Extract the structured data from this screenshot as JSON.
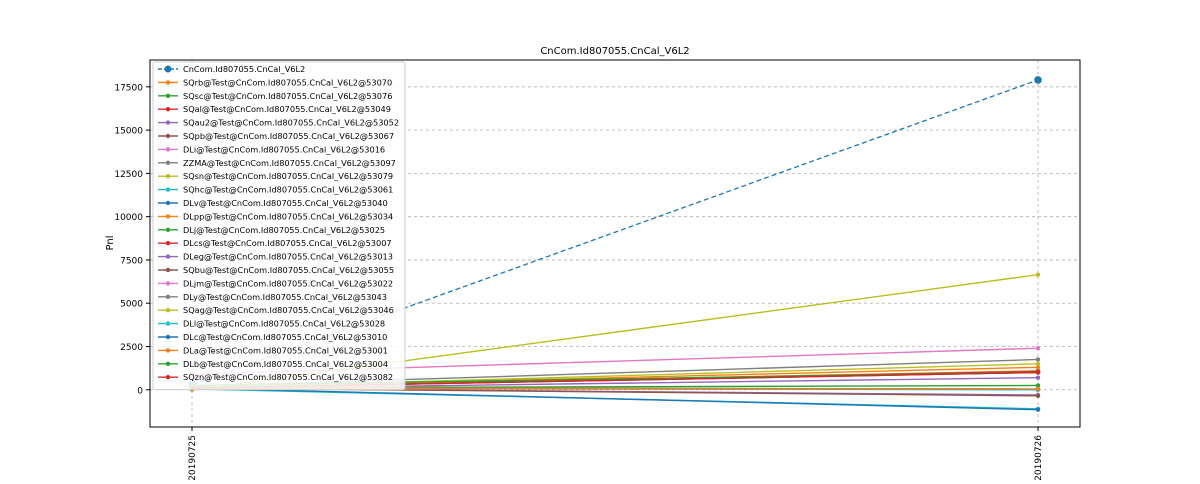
{
  "chart_data": {
    "type": "line",
    "title": "CnCom.Id807055.CnCal_V6L2",
    "xlabel": "",
    "ylabel": "Pnl",
    "categories": [
      "20190725",
      "20190726"
    ],
    "ylim": [
      -2150,
      19050
    ],
    "yticks": [
      0,
      2500,
      5000,
      7500,
      10000,
      12500,
      15000,
      17500
    ],
    "grid": true,
    "legend_position": "upper-left",
    "series": [
      {
        "name": "CnCom.Id807055.CnCal_V6L2",
        "values": [
          300,
          17900
        ],
        "color": "#1f77b4",
        "dashed": true,
        "bold": true
      },
      {
        "name": "SQrb@Test@CnCom.Id807055.CnCal_V6L2@53070",
        "values": [
          100,
          1100
        ],
        "color": "#ff7f0e"
      },
      {
        "name": "SQsc@Test@CnCom.Id807055.CnCal_V6L2@53076",
        "values": [
          250,
          1000
        ],
        "color": "#2ca02c"
      },
      {
        "name": "SQal@Test@CnCom.Id807055.CnCal_V6L2@53049",
        "values": [
          100,
          1050
        ],
        "color": "#d62728"
      },
      {
        "name": "SQau2@Test@CnCom.Id807055.CnCal_V6L2@53052",
        "values": [
          50,
          700
        ],
        "color": "#9467bd"
      },
      {
        "name": "SQpb@Test@CnCom.Id807055.CnCal_V6L2@53067",
        "values": [
          150,
          1050
        ],
        "color": "#8c564b"
      },
      {
        "name": "DLi@Test@CnCom.Id807055.CnCal_V6L2@53016",
        "values": [
          900,
          2400
        ],
        "color": "#e377c2"
      },
      {
        "name": "ZZMA@Test@CnCom.Id807055.CnCal_V6L2@53097",
        "values": [
          200,
          1750
        ],
        "color": "#7f7f7f"
      },
      {
        "name": "SQsn@Test@CnCom.Id807055.CnCal_V6L2@53079",
        "values": [
          0,
          6650
        ],
        "color": "#bcbd22"
      },
      {
        "name": "SQhc@Test@CnCom.Id807055.CnCal_V6L2@53061",
        "values": [
          50,
          -1100
        ],
        "color": "#17becf"
      },
      {
        "name": "DLv@Test@CnCom.Id807055.CnCal_V6L2@53040",
        "values": [
          100,
          -1150
        ],
        "color": "#1f77b4"
      },
      {
        "name": "DLpp@Test@CnCom.Id807055.CnCal_V6L2@53034",
        "values": [
          100,
          1300
        ],
        "color": "#ff7f0e"
      },
      {
        "name": "DLj@Test@CnCom.Id807055.CnCal_V6L2@53025",
        "values": [
          100,
          250
        ],
        "color": "#2ca02c"
      },
      {
        "name": "DLcs@Test@CnCom.Id807055.CnCal_V6L2@53007",
        "values": [
          100,
          1000
        ],
        "color": "#d62728"
      },
      {
        "name": "DLeg@Test@CnCom.Id807055.CnCal_V6L2@53013",
        "values": [
          100,
          -300
        ],
        "color": "#9467bd"
      },
      {
        "name": "SQbu@Test@CnCom.Id807055.CnCal_V6L2@53055",
        "values": [
          100,
          -350
        ],
        "color": "#8c564b"
      },
      {
        "name": "DLjm@Test@CnCom.Id807055.CnCal_V6L2@53022",
        "values": [
          50,
          50
        ],
        "color": "#e377c2"
      },
      {
        "name": "DLy@Test@CnCom.Id807055.CnCal_V6L2@53043",
        "values": [
          100,
          1000
        ],
        "color": "#7f7f7f"
      },
      {
        "name": "SQag@Test@CnCom.Id807055.CnCal_V6L2@53046",
        "values": [
          100,
          1500
        ],
        "color": "#bcbd22"
      },
      {
        "name": "DLl@Test@CnCom.Id807055.CnCal_V6L2@53028",
        "values": [
          100,
          0
        ],
        "color": "#17becf"
      },
      {
        "name": "DLc@Test@CnCom.Id807055.CnCal_V6L2@53010",
        "values": [
          100,
          50
        ],
        "color": "#1f77b4"
      },
      {
        "name": "DLa@Test@CnCom.Id807055.CnCal_V6L2@53001",
        "values": [
          100,
          50
        ],
        "color": "#ff7f0e"
      },
      {
        "name": "DLb@Test@CnCom.Id807055.CnCal_V6L2@53004",
        "values": [
          250,
          1000
        ],
        "color": "#2ca02c"
      },
      {
        "name": "SQzn@Test@CnCom.Id807055.CnCal_V6L2@53082",
        "values": [
          100,
          1000
        ],
        "color": "#d62728"
      }
    ]
  }
}
